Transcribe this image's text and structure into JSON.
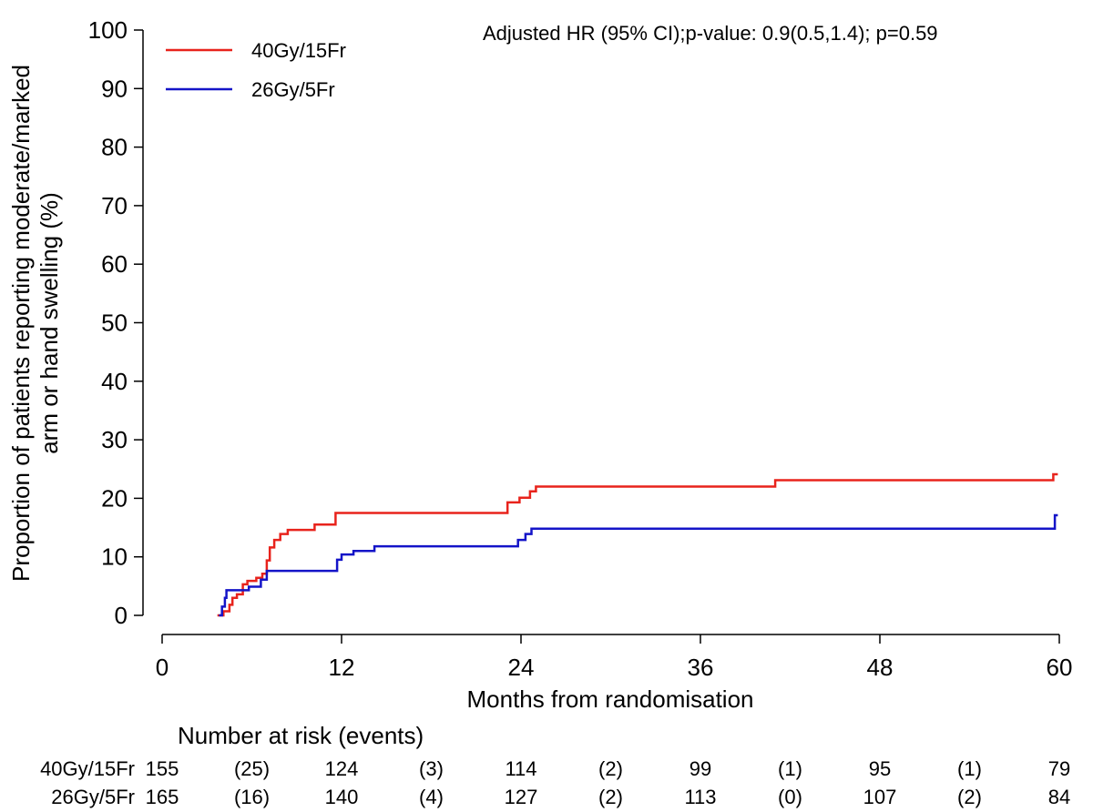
{
  "chart_data": {
    "type": "line",
    "annotation": "Adjusted HR (95% CI);p-value: 0.9(0.5,1.4); p=0.59",
    "xlabel": "Months from randomisation",
    "ylabel_lines": [
      "Proportion of patients reporting moderate/marked",
      "arm or hand swelling (%)"
    ],
    "xlim": [
      0,
      60
    ],
    "ylim": [
      0,
      100
    ],
    "x_ticks": [
      0,
      12,
      24,
      36,
      48,
      60
    ],
    "y_ticks": [
      0,
      10,
      20,
      30,
      40,
      50,
      60,
      70,
      80,
      90,
      100
    ],
    "grid": false,
    "legend_position": "top-left",
    "series": [
      {
        "name": "40Gy/15Fr",
        "color": "#e8231c",
        "points": [
          [
            3.7,
            0
          ],
          [
            4.1,
            0
          ],
          [
            4.1,
            0.7
          ],
          [
            4.5,
            0.7
          ],
          [
            4.5,
            1.8
          ],
          [
            4.7,
            1.8
          ],
          [
            4.7,
            3.0
          ],
          [
            5.0,
            3.0
          ],
          [
            5.0,
            3.6
          ],
          [
            5.4,
            3.6
          ],
          [
            5.4,
            5.3
          ],
          [
            5.7,
            5.3
          ],
          [
            5.7,
            5.9
          ],
          [
            6.3,
            5.9
          ],
          [
            6.3,
            6.4
          ],
          [
            6.7,
            6.4
          ],
          [
            6.7,
            7.1
          ],
          [
            7.0,
            7.1
          ],
          [
            7.0,
            9.4
          ],
          [
            7.2,
            9.4
          ],
          [
            7.2,
            11.6
          ],
          [
            7.5,
            11.6
          ],
          [
            7.5,
            12.9
          ],
          [
            7.9,
            12.9
          ],
          [
            7.9,
            13.9
          ],
          [
            8.4,
            13.9
          ],
          [
            8.4,
            14.6
          ],
          [
            10.2,
            14.6
          ],
          [
            10.2,
            15.5
          ],
          [
            11.6,
            15.5
          ],
          [
            11.6,
            17.5
          ],
          [
            23.1,
            17.5
          ],
          [
            23.1,
            19.3
          ],
          [
            23.9,
            19.3
          ],
          [
            23.9,
            20.1
          ],
          [
            24.6,
            20.1
          ],
          [
            24.6,
            21.2
          ],
          [
            25.0,
            21.2
          ],
          [
            25.0,
            22.0
          ],
          [
            41.0,
            22.0
          ],
          [
            41.0,
            23.1
          ],
          [
            59.6,
            23.1
          ],
          [
            59.6,
            24.1
          ],
          [
            59.9,
            24.1
          ]
        ]
      },
      {
        "name": "26Gy/5Fr",
        "color": "#1414c8",
        "points": [
          [
            3.8,
            0
          ],
          [
            4.0,
            0
          ],
          [
            4.0,
            1.5
          ],
          [
            4.2,
            1.5
          ],
          [
            4.2,
            3.0
          ],
          [
            4.3,
            3.0
          ],
          [
            4.3,
            4.3
          ],
          [
            5.8,
            4.3
          ],
          [
            5.8,
            4.9
          ],
          [
            6.6,
            4.9
          ],
          [
            6.6,
            6.1
          ],
          [
            7.0,
            6.1
          ],
          [
            7.0,
            7.6
          ],
          [
            11.7,
            7.6
          ],
          [
            11.7,
            9.5
          ],
          [
            12.0,
            9.5
          ],
          [
            12.0,
            10.4
          ],
          [
            12.8,
            10.4
          ],
          [
            12.8,
            11.0
          ],
          [
            14.2,
            11.0
          ],
          [
            14.2,
            11.8
          ],
          [
            23.8,
            11.8
          ],
          [
            23.8,
            12.9
          ],
          [
            24.3,
            12.9
          ],
          [
            24.3,
            13.9
          ],
          [
            24.7,
            13.9
          ],
          [
            24.7,
            14.8
          ],
          [
            59.7,
            14.8
          ],
          [
            59.7,
            17.1
          ],
          [
            59.9,
            17.1
          ]
        ]
      }
    ],
    "risk_table": {
      "title": "Number at risk (events)",
      "rows": [
        {
          "label": "40Gy/15Fr",
          "values": [
            "155",
            "(25)",
            "124",
            "(3)",
            "114",
            "(2)",
            "99",
            "(1)",
            "95",
            "(1)",
            "79"
          ]
        },
        {
          "label": "26Gy/5Fr",
          "values": [
            "165",
            "(16)",
            "140",
            "(4)",
            "127",
            "(2)",
            "113",
            "(0)",
            "107",
            "(2)",
            "84"
          ]
        }
      ]
    }
  }
}
